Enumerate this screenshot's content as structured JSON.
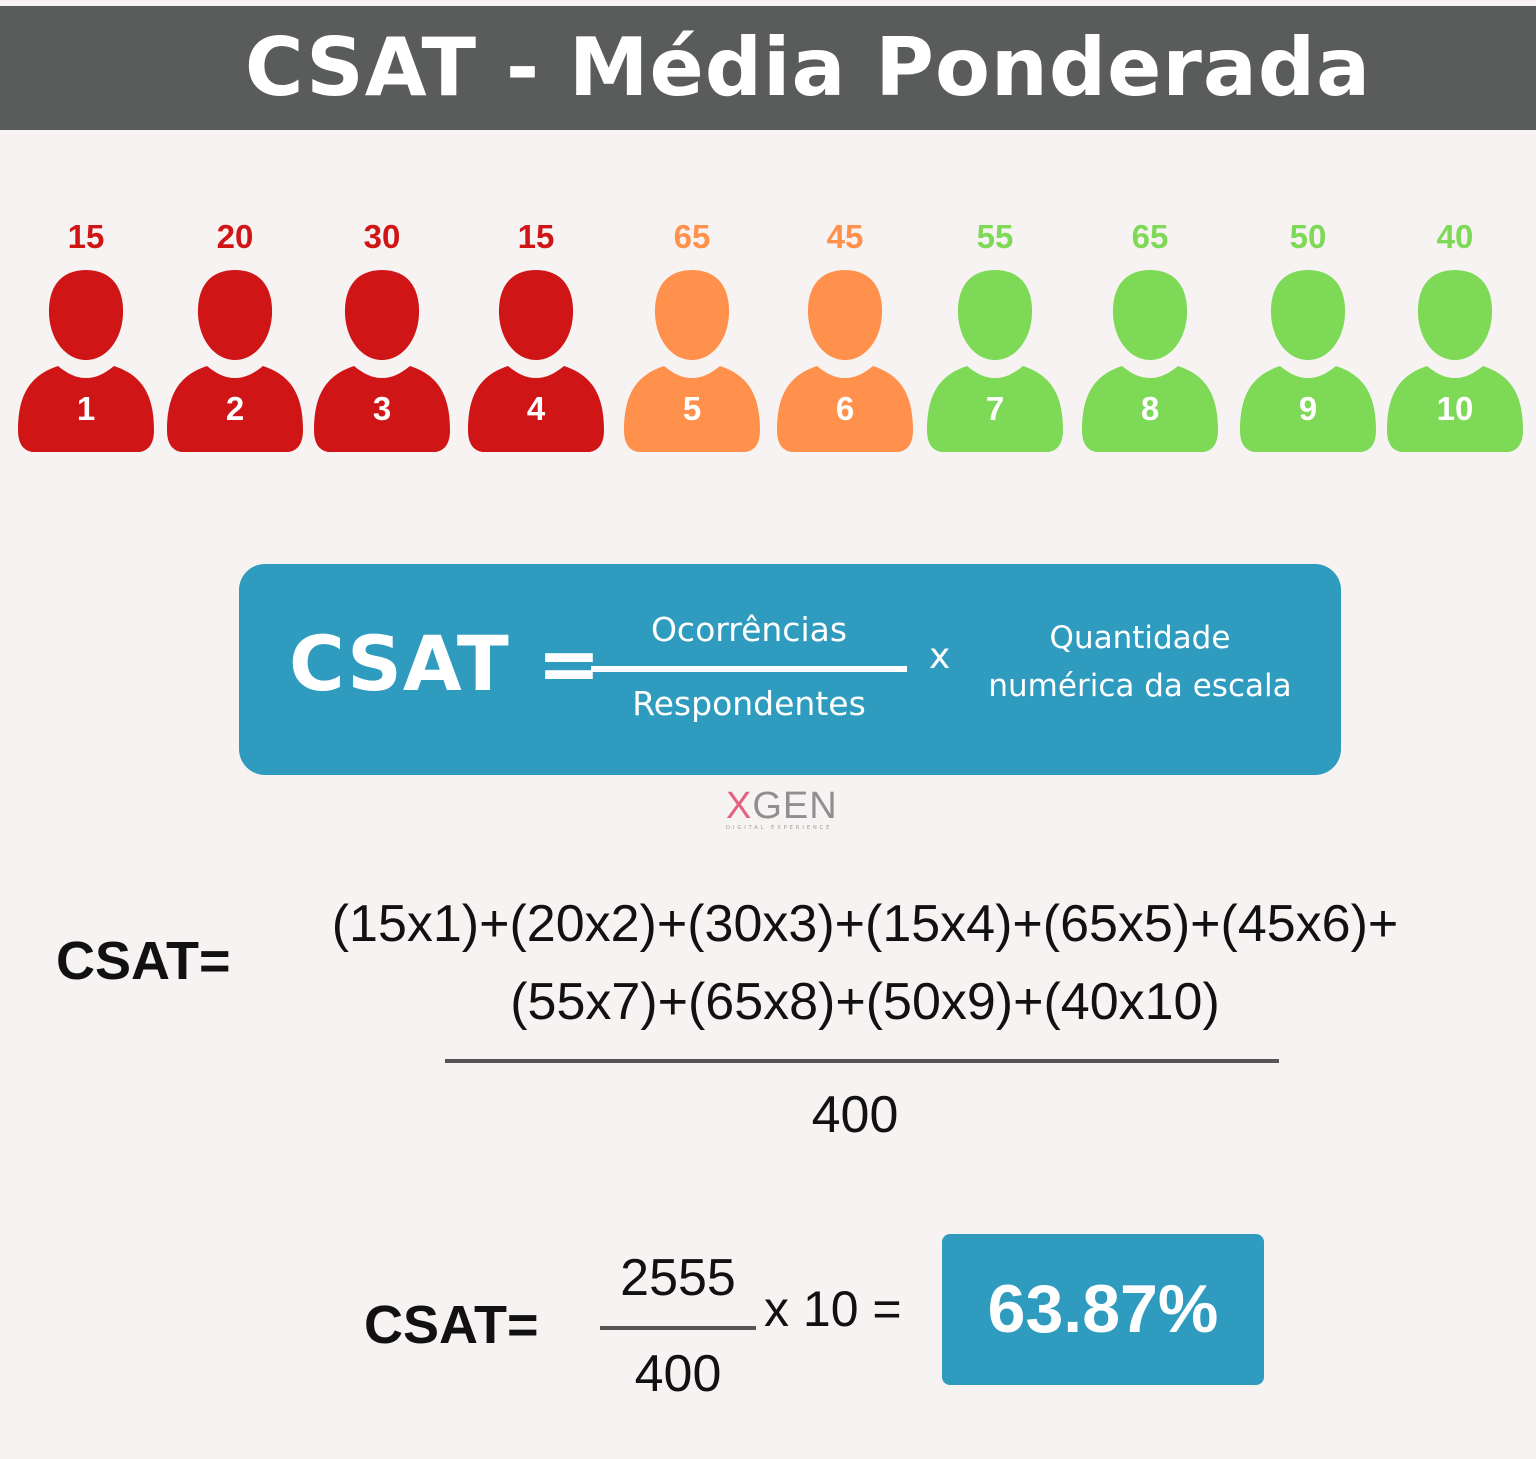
{
  "title": "CSAT - Média Ponderada",
  "colors": {
    "header_bg": "#5a5b5b",
    "red": "#d01517",
    "orange": "#ff914d",
    "green": "#7ed957",
    "formula_bg": "#2f9cbf",
    "background": "#f7f3f2"
  },
  "respondents": [
    {
      "count": "15",
      "score": "1",
      "color": "#d01517"
    },
    {
      "count": "20",
      "score": "2",
      "color": "#d01517"
    },
    {
      "count": "30",
      "score": "3",
      "color": "#d01517"
    },
    {
      "count": "15",
      "score": "4",
      "color": "#d01517"
    },
    {
      "count": "65",
      "score": "5",
      "color": "#ff914d"
    },
    {
      "count": "45",
      "score": "6",
      "color": "#ff914d"
    },
    {
      "count": "55",
      "score": "7",
      "color": "#7ed957"
    },
    {
      "count": "65",
      "score": "8",
      "color": "#7ed957"
    },
    {
      "count": "50",
      "score": "9",
      "color": "#7ed957"
    },
    {
      "count": "40",
      "score": "10",
      "color": "#7ed957"
    }
  ],
  "formula": {
    "lhs": "CSAT =",
    "numerator": "Ocorrências",
    "denominator": "Respondentes",
    "times": "x",
    "scale_line1": "Quantidade",
    "scale_line2": "numérica da escala"
  },
  "logo": {
    "x": "X",
    "gen": "GEN",
    "subtitle": "DIGITAL EXPERIENCE"
  },
  "equation1": {
    "label": "CSAT=",
    "numerator_line1": "(15x1)+(20x2)+(30x3)+(15x4)+(65x5)+(45x6)+",
    "numerator_line2": "(55x7)+(65x8)+(50x9)+(40x10)",
    "denominator": "400"
  },
  "equation2": {
    "label": "CSAT=",
    "numerator": "2555",
    "denominator": "400",
    "multiplier": "x 10 =",
    "result": "63.87%"
  }
}
